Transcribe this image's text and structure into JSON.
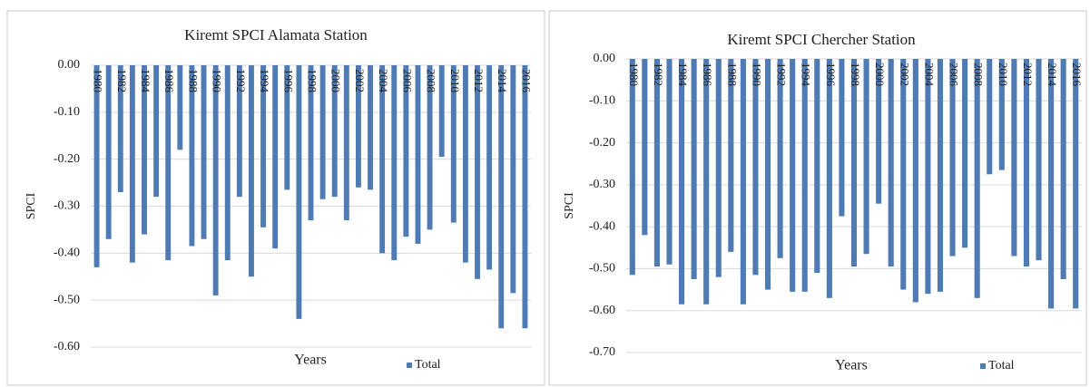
{
  "chart_data": [
    {
      "type": "bar",
      "title": "Kiremt SPCI Alamata Station",
      "y_label": "SPCI",
      "x_label": "Years",
      "categories": [
        "1980",
        null,
        "1982",
        null,
        "1984",
        null,
        "1986",
        null,
        "1988",
        null,
        "1990",
        null,
        "1992",
        null,
        "1994",
        null,
        "1996",
        null,
        "1998",
        null,
        "2000",
        null,
        "2002",
        null,
        "2004",
        null,
        "2006",
        null,
        "2008",
        null,
        "2010",
        null,
        "2012",
        null,
        "2014",
        null,
        "2016"
      ],
      "series": [
        {
          "name": "Total",
          "color": "#4f7bb5",
          "values": [
            -0.43,
            -0.37,
            -0.27,
            -0.42,
            -0.36,
            -0.28,
            -0.415,
            -0.18,
            -0.385,
            -0.37,
            -0.49,
            -0.415,
            -0.28,
            -0.45,
            -0.345,
            -0.39,
            -0.265,
            -0.54,
            -0.33,
            -0.285,
            -0.28,
            -0.33,
            -0.26,
            -0.265,
            -0.4,
            -0.415,
            -0.365,
            -0.38,
            -0.35,
            -0.195,
            -0.335,
            -0.42,
            -0.455,
            -0.435,
            -0.56,
            -0.485,
            -0.56
          ]
        }
      ],
      "ylim": [
        -0.6,
        0
      ],
      "yticks": [
        {
          "value": 0,
          "label": "0.00"
        },
        {
          "value": -0.1,
          "label": "-0.10"
        },
        {
          "value": -0.2,
          "label": "-0.20"
        },
        {
          "value": -0.3,
          "label": "-0.30"
        },
        {
          "value": -0.4,
          "label": "-0.40"
        },
        {
          "value": -0.5,
          "label": "-0.50"
        },
        {
          "value": -0.6,
          "label": "-0.60"
        }
      ],
      "grid": true
    },
    {
      "type": "bar",
      "title": "Kiremt SPCI Chercher Station",
      "y_label": "SPCI",
      "x_label": "Years",
      "categories": [
        "1980",
        null,
        "1982",
        null,
        "1984",
        null,
        "1986",
        null,
        "1988",
        null,
        "1990",
        null,
        "1992",
        null,
        "1994",
        null,
        "1996",
        null,
        "1998",
        null,
        "2000",
        null,
        "2002",
        null,
        "2004",
        null,
        "2006",
        null,
        "2008",
        null,
        "2010",
        null,
        "2012",
        null,
        "2014",
        null,
        "2016"
      ],
      "series": [
        {
          "name": "Total",
          "color": "#4f7bb5",
          "values": [
            -0.515,
            -0.42,
            -0.495,
            -0.49,
            -0.585,
            -0.525,
            -0.585,
            -0.52,
            -0.46,
            -0.585,
            -0.515,
            -0.55,
            -0.475,
            -0.555,
            -0.555,
            -0.51,
            -0.57,
            -0.375,
            -0.495,
            -0.465,
            -0.345,
            -0.495,
            -0.55,
            -0.58,
            -0.56,
            -0.555,
            -0.47,
            -0.45,
            -0.57,
            -0.275,
            -0.265,
            -0.47,
            -0.495,
            -0.48,
            -0.595,
            -0.525,
            -0.595
          ]
        }
      ],
      "ylim": [
        -0.7,
        0
      ],
      "yticks": [
        {
          "value": 0,
          "label": "0.00"
        },
        {
          "value": -0.1,
          "label": "-0.10"
        },
        {
          "value": -0.2,
          "label": "-0.20"
        },
        {
          "value": -0.3,
          "label": "-0.30"
        },
        {
          "value": -0.4,
          "label": "-0.40"
        },
        {
          "value": -0.5,
          "label": "-0.50"
        },
        {
          "value": -0.6,
          "label": "-0.60"
        },
        {
          "value": -0.7,
          "label": "-0.70"
        }
      ],
      "grid": true
    }
  ]
}
